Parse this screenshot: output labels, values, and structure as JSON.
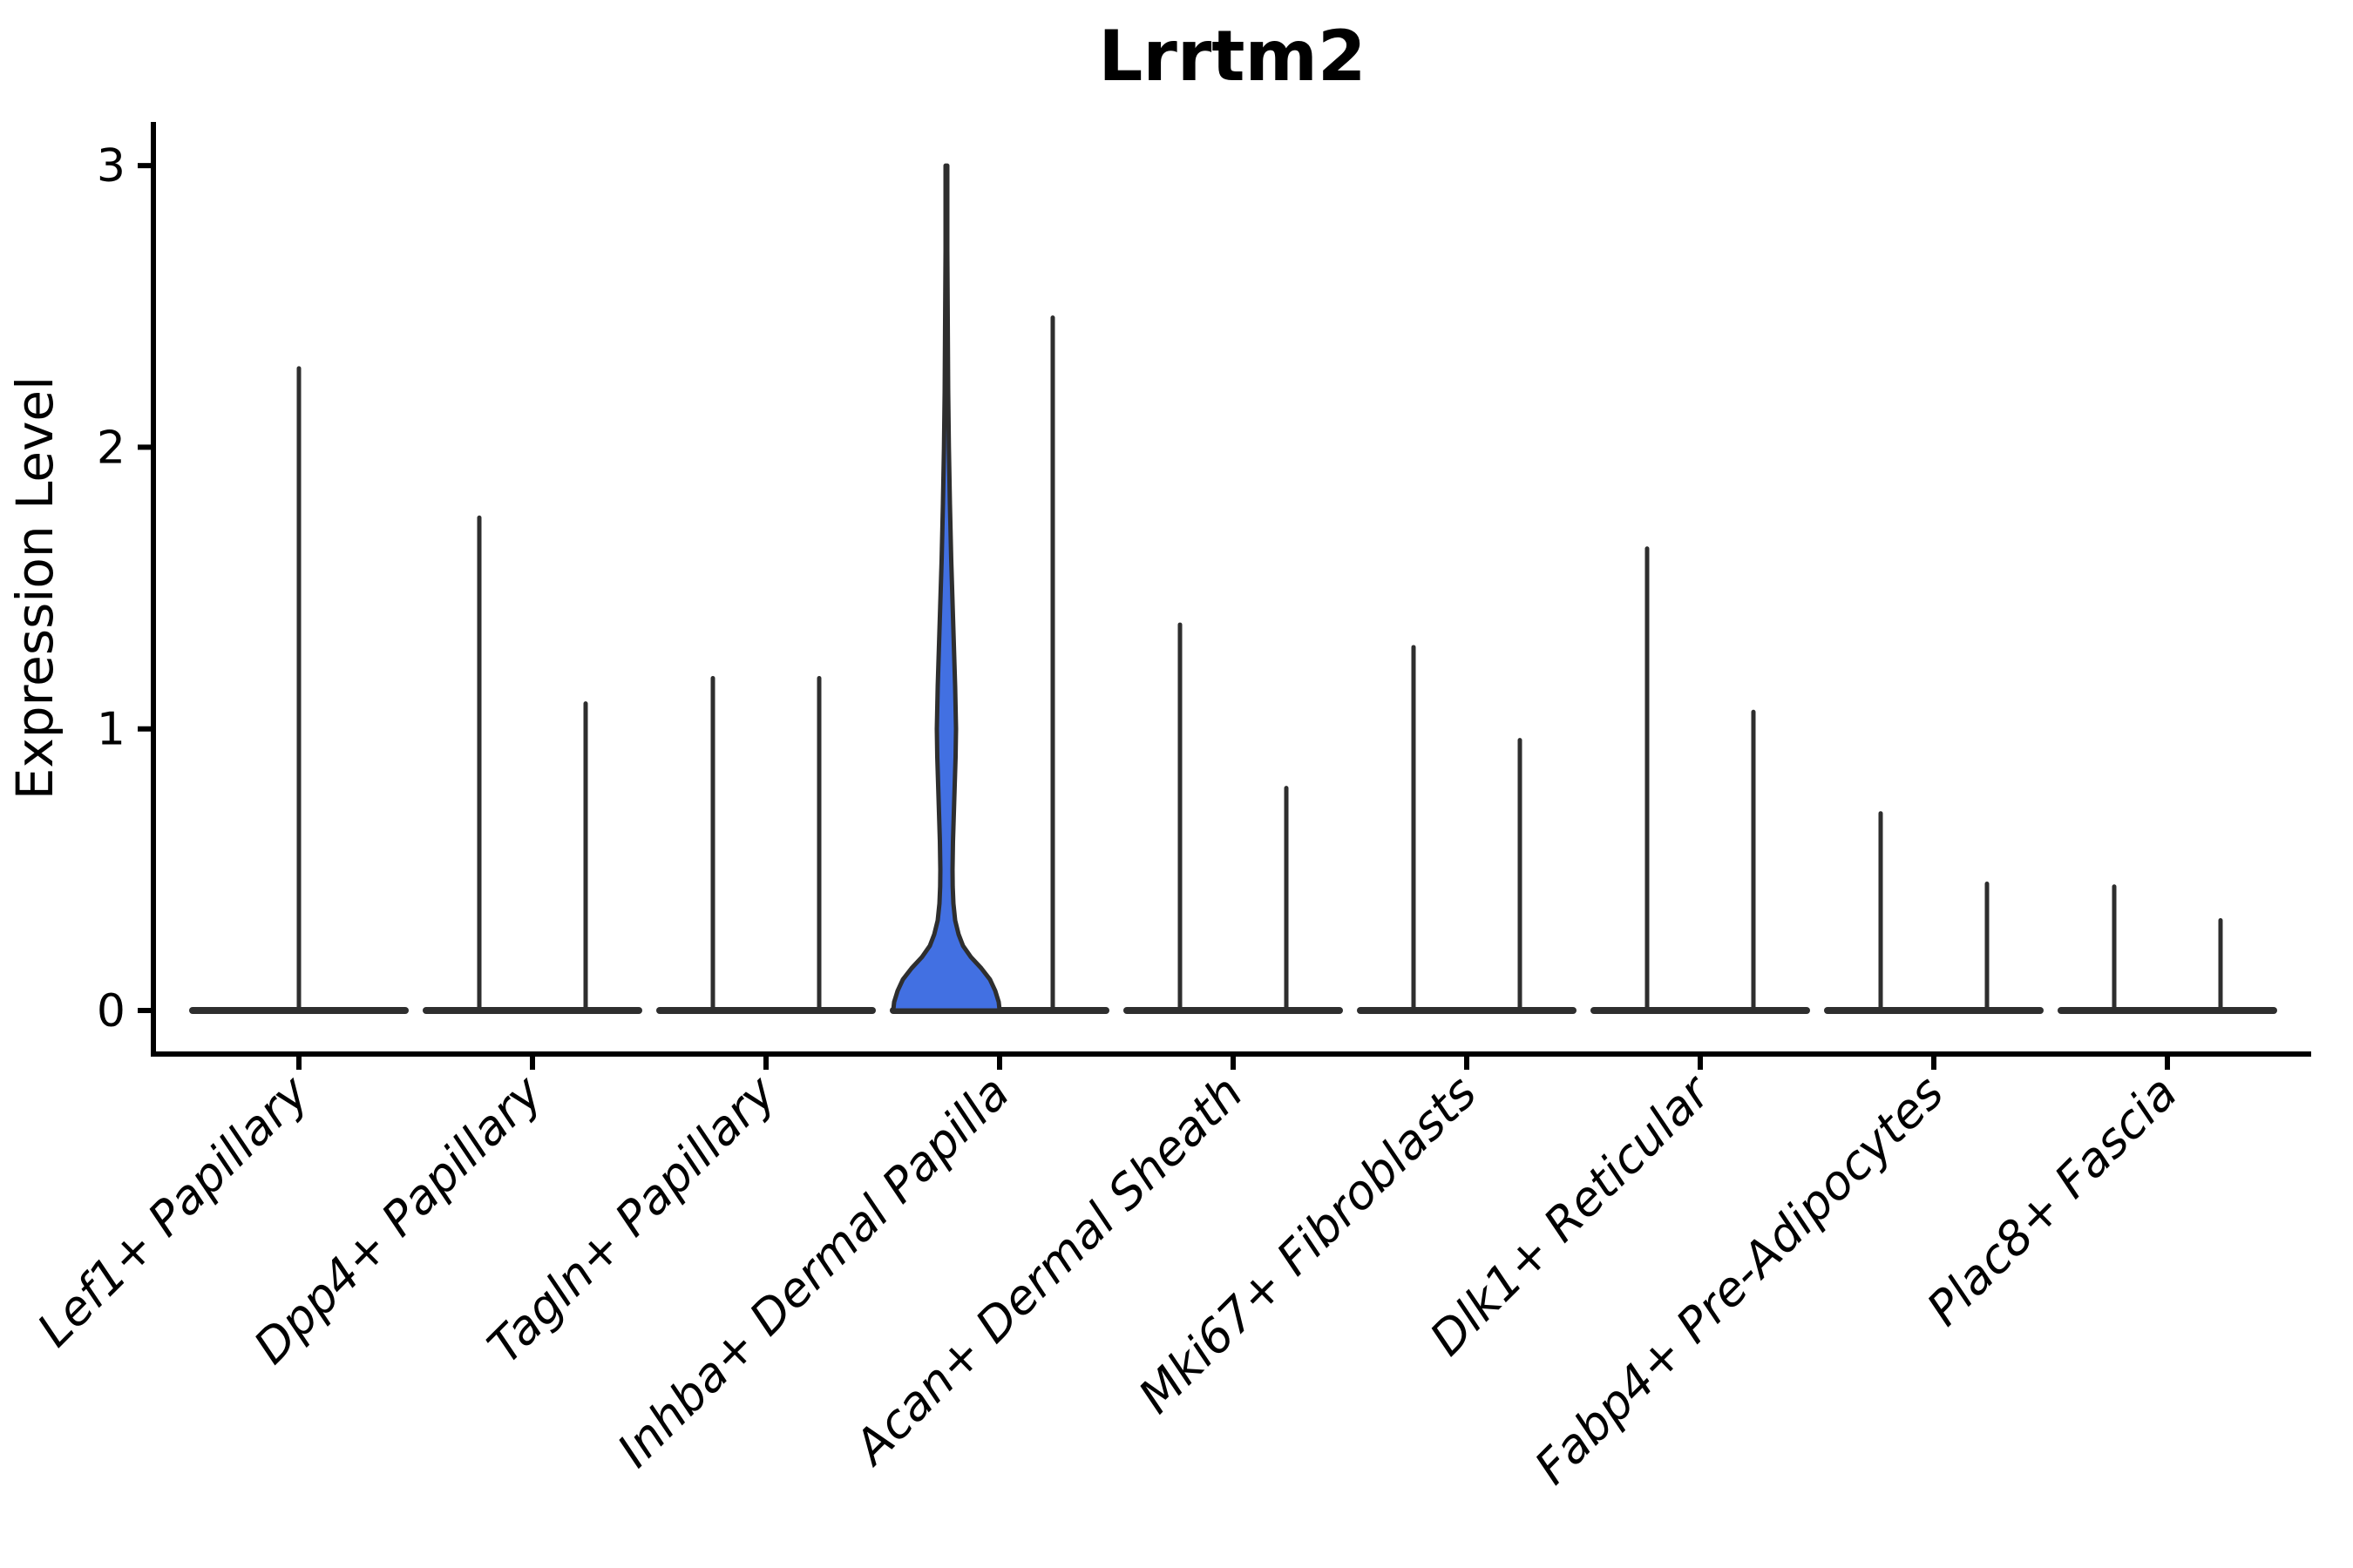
{
  "title": "Lrrtm2",
  "y_axis": {
    "label": "Expression Level",
    "tick_labels": [
      "0",
      "1",
      "2",
      "3"
    ]
  },
  "x_axis": {
    "tick_labels": [
      "Lef1+ Papillary",
      "Dpp4+ Papillary",
      "Tagln+ Papillary",
      "Inhba+ Dermal Papilla",
      "Acan+ Dermal Sheath",
      "Mki67+ Fibroblasts",
      "Dlk1+ Reticular",
      "Fabp4+ Pre-Adipocytes",
      "Plac8+ Fascia"
    ]
  },
  "colors": {
    "background": "#ffffff",
    "axis": "#000000",
    "violin_outline": "#2e2e2e",
    "highlight_fill": "#4270e2"
  },
  "chart_data": {
    "type": "violin",
    "title": "Lrrtm2",
    "xlabel": "",
    "ylabel": "Expression Level",
    "ylim": [
      0,
      3
    ],
    "yticks": [
      0,
      1,
      2,
      3
    ],
    "grid": false,
    "legend": "none",
    "categories": [
      "Lef1+ Papillary",
      "Dpp4+ Papillary",
      "Tagln+ Papillary",
      "Inhba+ Dermal Papilla",
      "Acan+ Dermal Sheath",
      "Mki67+ Fibroblasts",
      "Dlk1+ Reticular",
      "Fabp4+ Pre-Adipocytes",
      "Plac8+ Fascia"
    ],
    "description": "Violin plot of Lrrtm2 expression per fibroblast cluster; most violins are collapsed flat at 0 with a thin spike to their max expression; only the left violin of Inhba+ Dermal Papilla has a visible filled KDE body reaching 3.0.",
    "violins": [
      {
        "category_index": 0,
        "position": "center",
        "max_expression": 2.28,
        "filled": false
      },
      {
        "category_index": 1,
        "position": "left",
        "max_expression": 1.75,
        "filled": false
      },
      {
        "category_index": 1,
        "position": "right",
        "max_expression": 1.09,
        "filled": false
      },
      {
        "category_index": 2,
        "position": "left",
        "max_expression": 1.18,
        "filled": false
      },
      {
        "category_index": 2,
        "position": "right",
        "max_expression": 1.18,
        "filled": false
      },
      {
        "category_index": 3,
        "position": "left",
        "max_expression": 3.0,
        "filled": true,
        "fill_color": "#4270e2",
        "width_profile": [
          [
            3.0,
            1.0
          ],
          [
            2.7,
            1.0
          ],
          [
            2.45,
            1.5
          ],
          [
            2.2,
            2.0
          ],
          [
            2.0,
            2.8
          ],
          [
            1.8,
            4.0
          ],
          [
            1.6,
            5.5
          ],
          [
            1.45,
            7.0
          ],
          [
            1.3,
            8.5
          ],
          [
            1.15,
            10.0
          ],
          [
            1.0,
            11.0
          ],
          [
            0.9,
            10.5
          ],
          [
            0.8,
            9.5
          ],
          [
            0.7,
            8.5
          ],
          [
            0.6,
            7.5
          ],
          [
            0.5,
            7.0
          ],
          [
            0.44,
            7.2
          ],
          [
            0.38,
            8.0
          ],
          [
            0.32,
            10.0
          ],
          [
            0.27,
            14.0
          ],
          [
            0.23,
            19.0
          ],
          [
            0.19,
            28.0
          ],
          [
            0.15,
            40.0
          ],
          [
            0.11,
            50.0
          ],
          [
            0.07,
            56.0
          ],
          [
            0.03,
            60.0
          ],
          [
            0.0,
            61.0
          ]
        ]
      },
      {
        "category_index": 3,
        "position": "right",
        "max_expression": 2.46,
        "filled": false
      },
      {
        "category_index": 4,
        "position": "left",
        "max_expression": 1.37,
        "filled": false
      },
      {
        "category_index": 4,
        "position": "right",
        "max_expression": 0.79,
        "filled": false
      },
      {
        "category_index": 5,
        "position": "left",
        "max_expression": 1.29,
        "filled": false
      },
      {
        "category_index": 5,
        "position": "right",
        "max_expression": 0.96,
        "filled": false
      },
      {
        "category_index": 6,
        "position": "left",
        "max_expression": 1.64,
        "filled": false
      },
      {
        "category_index": 6,
        "position": "right",
        "max_expression": 1.06,
        "filled": false
      },
      {
        "category_index": 7,
        "position": "left",
        "max_expression": 0.7,
        "filled": false
      },
      {
        "category_index": 7,
        "position": "right",
        "max_expression": 0.45,
        "filled": false
      },
      {
        "category_index": 8,
        "position": "left",
        "max_expression": 0.44,
        "filled": false
      },
      {
        "category_index": 8,
        "position": "right",
        "max_expression": 0.32,
        "filled": false
      }
    ]
  }
}
